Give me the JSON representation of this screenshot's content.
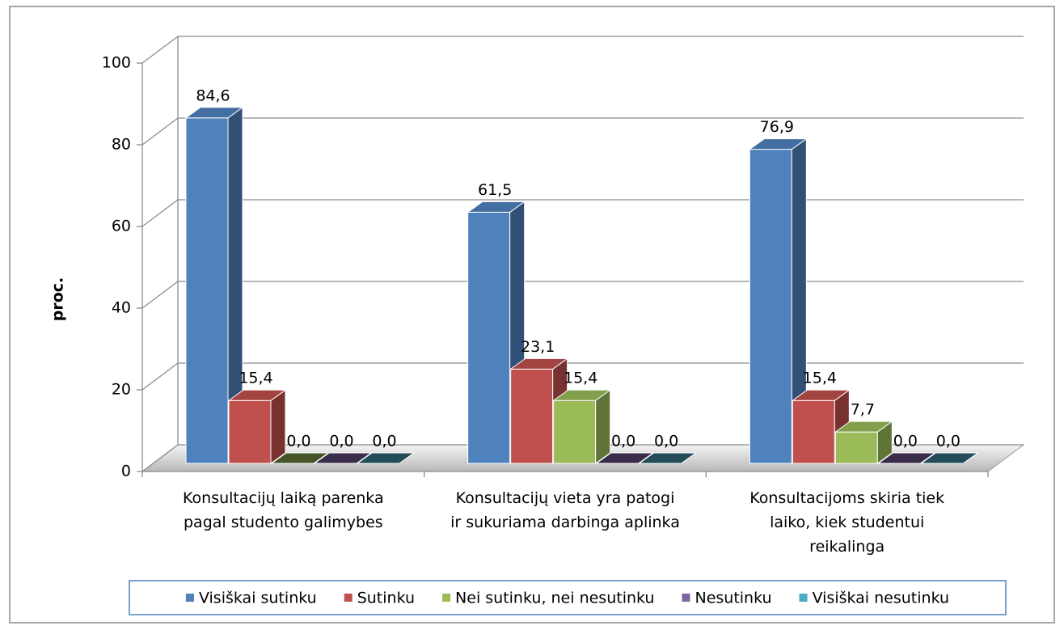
{
  "chart_data": {
    "type": "bar3d",
    "y_label": "proc.",
    "categories": [
      [
        "Konsultacijų laiką parenka",
        "pagal studento galimybes"
      ],
      [
        "Konsultacijų vieta yra patogi",
        "ir sukuriama darbinga aplinka"
      ],
      [
        "Konsultacijoms skiria tiek",
        "laiko, kiek studentui",
        "reikalinga"
      ]
    ],
    "series": [
      {
        "name": "Visiškai sutinku",
        "color": "#4f81bd",
        "values": [
          84.6,
          61.5,
          76.9
        ],
        "value_labels": [
          "84,6",
          "61,5",
          "76,9"
        ]
      },
      {
        "name": "Sutinku",
        "color": "#c0504d",
        "values": [
          15.4,
          23.1,
          15.4
        ],
        "value_labels": [
          "15,4",
          "23,1",
          "15,4"
        ]
      },
      {
        "name": "Nei sutinku, nei nesutinku",
        "color": "#9bbb59",
        "values": [
          0.0,
          15.4,
          7.7
        ],
        "value_labels": [
          "0,0",
          "15,4",
          "7,7"
        ]
      },
      {
        "name": "Nesutinku",
        "color": "#8064a2",
        "values": [
          0.0,
          0.0,
          0.0
        ],
        "value_labels": [
          "0,0",
          "0,0",
          "0,0"
        ]
      },
      {
        "name": "Visiškai nesutinku",
        "color": "#4bacc6",
        "values": [
          0.0,
          0.0,
          0.0
        ],
        "value_labels": [
          "0,0",
          "0,0",
          "0,0"
        ]
      }
    ],
    "ylim": [
      0,
      100
    ],
    "yticks": [
      0,
      20,
      40,
      60,
      80,
      100
    ],
    "grid": true,
    "legend": "bottom"
  }
}
